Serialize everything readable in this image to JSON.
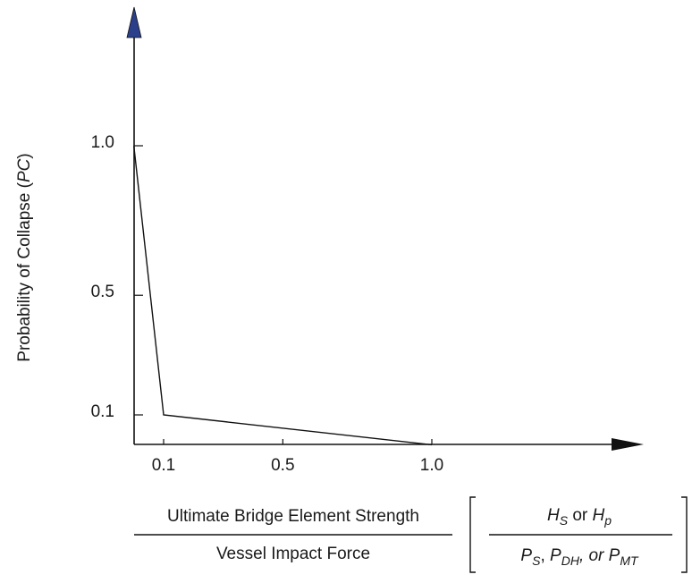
{
  "chart_data": {
    "type": "line",
    "title": "",
    "xlabel": "",
    "ylabel": "Probability of Collapse (PC)",
    "ylabel_parts": {
      "prefix": "Probability of Collapse (",
      "symbol": "PC",
      "suffix": ")"
    },
    "x_ticks": [
      "0.1",
      "0.5",
      "1.0"
    ],
    "y_ticks": [
      "0.1",
      "0.5",
      "1.0"
    ],
    "x_tick_values": [
      0.1,
      0.5,
      1.0
    ],
    "y_tick_values": [
      0.1,
      0.5,
      1.0
    ],
    "xlim": [
      0.0,
      1.6
    ],
    "ylim": [
      0.0,
      1.5
    ],
    "grid": false,
    "series": [
      {
        "x": [
          0.0,
          0.1,
          1.0
        ],
        "y": [
          1.0,
          0.1,
          0.0
        ]
      }
    ],
    "x_axis_caption": {
      "numerator": "Ultimate Bridge Element Strength",
      "denominator": "Vessel Impact Force",
      "bracket_numerator": {
        "a": "H",
        "a_sub": "S",
        "mid": " or ",
        "b": "H",
        "b_sub": "p"
      },
      "bracket_denominator": {
        "a": "P",
        "a_sub": "S",
        "sep1": ", ",
        "b": "P",
        "b_sub": "DH",
        "sep2": ", or ",
        "c": "P",
        "c_sub": "MT"
      }
    },
    "colors": {
      "axis": "#111111",
      "line": "#111111",
      "arrow_up": "#2b3f8a",
      "arrow_right": "#111111"
    }
  }
}
